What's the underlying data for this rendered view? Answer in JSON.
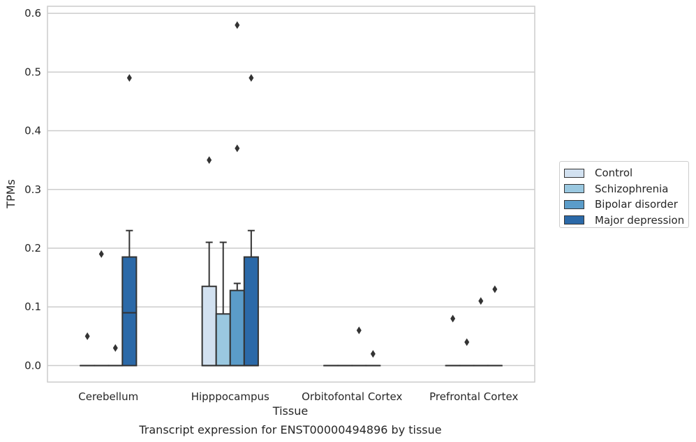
{
  "chart_data": {
    "type": "box",
    "title": "",
    "xlabel": "Tissue",
    "ylabel": "TPMs",
    "caption": "Transcript expression for ENST00000494896 by tissue",
    "categories": [
      "Cerebellum",
      "Hipppocampus",
      "Orbitofontal Cortex",
      "Prefrontal Cortex"
    ],
    "ylim": [
      -0.028,
      0.612
    ],
    "yticks": [
      "0.0",
      "0.1",
      "0.2",
      "0.3",
      "0.4",
      "0.5",
      "0.6"
    ],
    "grid": "horizontal",
    "legend_position": "right",
    "series": [
      {
        "name": "Control",
        "color": "#d2e1f0",
        "boxes": [
          {
            "q1": 0,
            "median": 0,
            "q3": 0,
            "whisker_low": 0,
            "whisker_high": 0,
            "outliers": [
              0.05
            ]
          },
          {
            "q1": 0,
            "median": 0,
            "q3": 0.135,
            "whisker_low": 0,
            "whisker_high": 0.21,
            "outliers": [
              0.35
            ]
          },
          {
            "q1": 0,
            "median": 0,
            "q3": 0,
            "whisker_low": 0,
            "whisker_high": 0,
            "outliers": []
          },
          {
            "q1": 0,
            "median": 0,
            "q3": 0,
            "whisker_low": 0,
            "whisker_high": 0,
            "outliers": [
              0.08
            ]
          }
        ]
      },
      {
        "name": "Schizophrenia",
        "color": "#9ac8e0",
        "boxes": [
          {
            "q1": 0,
            "median": 0,
            "q3": 0,
            "whisker_low": 0,
            "whisker_high": 0,
            "outliers": [
              0.19
            ]
          },
          {
            "q1": 0,
            "median": 0,
            "q3": 0.088,
            "whisker_low": 0,
            "whisker_high": 0.21,
            "outliers": []
          },
          {
            "q1": 0,
            "median": 0,
            "q3": 0,
            "whisker_low": 0,
            "whisker_high": 0,
            "outliers": []
          },
          {
            "q1": 0,
            "median": 0,
            "q3": 0,
            "whisker_low": 0,
            "whisker_high": 0,
            "outliers": [
              0.04
            ]
          }
        ]
      },
      {
        "name": "Bipolar disorder",
        "color": "#5b9cc9",
        "boxes": [
          {
            "q1": 0,
            "median": 0,
            "q3": 0,
            "whisker_low": 0,
            "whisker_high": 0,
            "outliers": [
              0.03
            ]
          },
          {
            "q1": 0,
            "median": 0,
            "q3": 0.128,
            "whisker_low": 0,
            "whisker_high": 0.14,
            "outliers": [
              0.37,
              0.58
            ]
          },
          {
            "q1": 0,
            "median": 0,
            "q3": 0,
            "whisker_low": 0,
            "whisker_high": 0,
            "outliers": [
              0.06
            ]
          },
          {
            "q1": 0,
            "median": 0,
            "q3": 0,
            "whisker_low": 0,
            "whisker_high": 0,
            "outliers": [
              0.11
            ]
          }
        ]
      },
      {
        "name": "Major depression",
        "color": "#2b69a8",
        "boxes": [
          {
            "q1": 0,
            "median": 0.09,
            "q3": 0.185,
            "whisker_low": 0,
            "whisker_high": 0.23,
            "outliers": [
              0.49
            ]
          },
          {
            "q1": 0,
            "median": 0,
            "q3": 0.185,
            "whisker_low": 0,
            "whisker_high": 0.23,
            "outliers": [
              0.49
            ]
          },
          {
            "q1": 0,
            "median": 0,
            "q3": 0,
            "whisker_low": 0,
            "whisker_high": 0,
            "outliers": [
              0.02
            ]
          },
          {
            "q1": 0,
            "median": 0,
            "q3": 0,
            "whisker_low": 0,
            "whisker_high": 0,
            "outliers": [
              0.13
            ]
          }
        ]
      }
    ]
  }
}
